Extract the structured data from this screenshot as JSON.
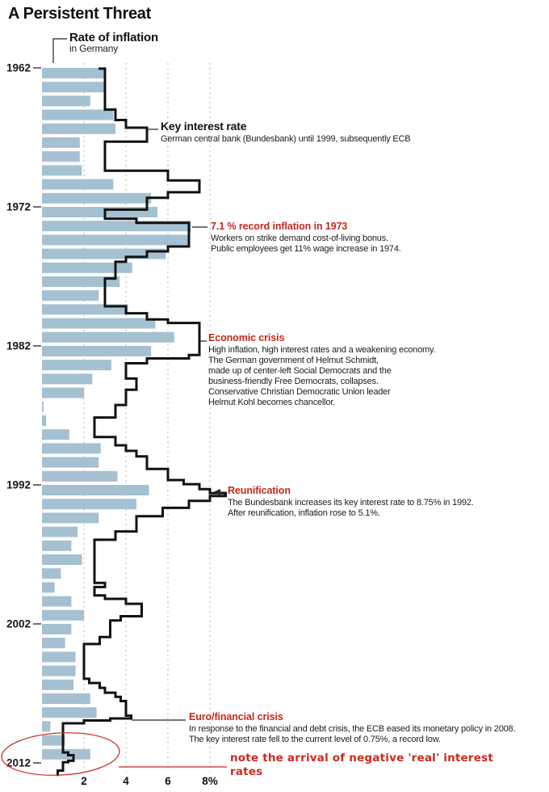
{
  "title": "A Persistent Threat",
  "colors": {
    "bar": "#a5c1d1",
    "line": "#111111",
    "grid": "#9c9c9c",
    "annotation_red": "#c5281c",
    "note_red": "#d0281e",
    "ellipse_red": "#cc3333",
    "text": "#1c1c1c"
  },
  "chart_data": {
    "type": "bar+step-line",
    "orientation": "horizontal-bars-vertical-time",
    "title": "A Persistent Threat",
    "x_axis": {
      "unit": "%",
      "ticks": [
        2,
        4,
        6,
        8
      ],
      "tick_labels": [
        "2",
        "4",
        "6",
        "8%"
      ],
      "range": [
        0,
        9
      ]
    },
    "y_axis": {
      "unit": "year",
      "ticks": [
        1962,
        1972,
        1982,
        1992,
        2002,
        2012
      ],
      "range": [
        1962,
        2013
      ]
    },
    "grid": "dashed-vertical",
    "series": [
      {
        "name": "Rate of inflation",
        "style": "bar"
      },
      {
        "name": "Key interest rate",
        "style": "step-line"
      }
    ],
    "bars": {
      "years": [
        1962,
        1963,
        1964,
        1965,
        1966,
        1967,
        1968,
        1969,
        1970,
        1971,
        1972,
        1973,
        1974,
        1975,
        1976,
        1977,
        1978,
        1979,
        1980,
        1981,
        1982,
        1983,
        1984,
        1985,
        1986,
        1987,
        1988,
        1989,
        1990,
        1991,
        1992,
        1993,
        1994,
        1995,
        1996,
        1997,
        1998,
        1999,
        2000,
        2001,
        2002,
        2003,
        2004,
        2005,
        2006,
        2007,
        2008,
        2009,
        2010,
        2011
      ],
      "values": [
        3.0,
        3.0,
        2.3,
        3.4,
        3.5,
        1.8,
        1.8,
        1.9,
        3.4,
        5.2,
        5.5,
        7.1,
        7.0,
        5.9,
        4.3,
        3.7,
        2.7,
        4.1,
        5.4,
        6.3,
        5.2,
        3.3,
        2.4,
        2.0,
        -0.1,
        0.2,
        1.3,
        2.8,
        2.7,
        3.6,
        5.1,
        4.5,
        2.7,
        1.7,
        1.4,
        1.9,
        0.9,
        0.6,
        1.4,
        2.0,
        1.4,
        1.1,
        1.6,
        1.6,
        1.5,
        2.3,
        2.6,
        0.4,
        1.1,
        2.3
      ]
    },
    "line_steps": [
      [
        1962.0,
        3.0
      ],
      [
        1965.0,
        3.5
      ],
      [
        1965.75,
        4.0
      ],
      [
        1966.3,
        5.0
      ],
      [
        1967.3,
        3.0
      ],
      [
        1969.4,
        6.0
      ],
      [
        1970.1,
        7.5
      ],
      [
        1970.95,
        6.0
      ],
      [
        1971.35,
        5.0
      ],
      [
        1972.2,
        3.0
      ],
      [
        1972.85,
        4.5
      ],
      [
        1973.15,
        7.0
      ],
      [
        1974.85,
        6.0
      ],
      [
        1975.2,
        5.0
      ],
      [
        1975.6,
        4.0
      ],
      [
        1975.95,
        3.5
      ],
      [
        1977.15,
        3.0
      ],
      [
        1979.15,
        4.0
      ],
      [
        1979.65,
        5.0
      ],
      [
        1980.1,
        6.0
      ],
      [
        1980.35,
        7.5
      ],
      [
        1982.65,
        7.0
      ],
      [
        1982.9,
        5.0
      ],
      [
        1983.25,
        4.0
      ],
      [
        1984.35,
        4.5
      ],
      [
        1985.15,
        4.0
      ],
      [
        1986.25,
        3.5
      ],
      [
        1987.15,
        2.5
      ],
      [
        1988.55,
        3.5
      ],
      [
        1989.15,
        4.0
      ],
      [
        1989.55,
        4.5
      ],
      [
        1989.95,
        5.0
      ],
      [
        1990.85,
        6.0
      ],
      [
        1991.65,
        6.75
      ],
      [
        1991.95,
        7.5
      ],
      [
        1992.3,
        8.0
      ],
      [
        1992.6,
        8.75
      ],
      [
        1992.8,
        8.0
      ],
      [
        1993.15,
        7.0
      ],
      [
        1993.65,
        5.75
      ],
      [
        1994.25,
        4.5
      ],
      [
        1995.35,
        3.5
      ],
      [
        1995.95,
        2.5
      ],
      [
        1999.05,
        3.0
      ],
      [
        1999.35,
        2.5
      ],
      [
        1999.95,
        3.0
      ],
      [
        2000.2,
        4.0
      ],
      [
        2000.55,
        4.75
      ],
      [
        2001.45,
        3.75
      ],
      [
        2001.75,
        3.25
      ],
      [
        2002.95,
        2.75
      ],
      [
        2003.45,
        2.0
      ],
      [
        2005.95,
        2.25
      ],
      [
        2006.25,
        2.75
      ],
      [
        2006.6,
        3.0
      ],
      [
        2006.95,
        3.5
      ],
      [
        2007.25,
        3.75
      ],
      [
        2007.55,
        4.0
      ],
      [
        2008.6,
        4.25
      ],
      [
        2008.8,
        3.25
      ],
      [
        2008.95,
        2.0
      ],
      [
        2009.15,
        1.0
      ],
      [
        2011.25,
        1.25
      ],
      [
        2011.45,
        1.5
      ],
      [
        2011.85,
        1.25
      ],
      [
        2011.95,
        1.0
      ],
      [
        2012.55,
        0.75
      ]
    ],
    "line_end_year": 2012.95,
    "highlight_ellipse": {
      "meaning": "negative real interest rates region",
      "color": "#cc3333"
    }
  },
  "annotations": {
    "inflation_label": {
      "head": "Rate of inflation",
      "sub": "in Germany"
    },
    "key_rate_label": {
      "head": "Key interest rate",
      "sub": "German central bank (Bundesbank) until 1999, subsequently ECB"
    },
    "record_1973": {
      "head": "7.1 % record inflation in 1973",
      "lines": [
        "Workers on strike demand cost-of-living bonus.",
        "Public employees get 11% wage increase in 1974."
      ]
    },
    "economic_crisis": {
      "head": "Economic crisis",
      "lines": [
        "High inflation, high interest rates and a weakening economy.",
        "The German government of Helmut Schmidt,",
        "made up of center-left Social Democrats and the",
        "business-friendly Free Democrats, collapses.",
        "Conservative Christian Democratic Union leader",
        "Helmut Kohl becomes chancellor."
      ]
    },
    "reunification": {
      "head": "Reunification",
      "lines": [
        "The Bundesbank increases its key interest rate to 8.75% in 1992.",
        "After reunification, inflation rose to 5.1%."
      ]
    },
    "euro_crisis": {
      "head": "Euro/financial crisis",
      "lines": [
        "In response to the financial and debt crisis, the ECB eased its monetary policy in 2008.",
        "The key interest rate fell to the current level of 0.75%, a record low."
      ]
    },
    "negative_note": {
      "line1": "note the arrival of negative 'real' interest",
      "line2": "rates"
    }
  }
}
